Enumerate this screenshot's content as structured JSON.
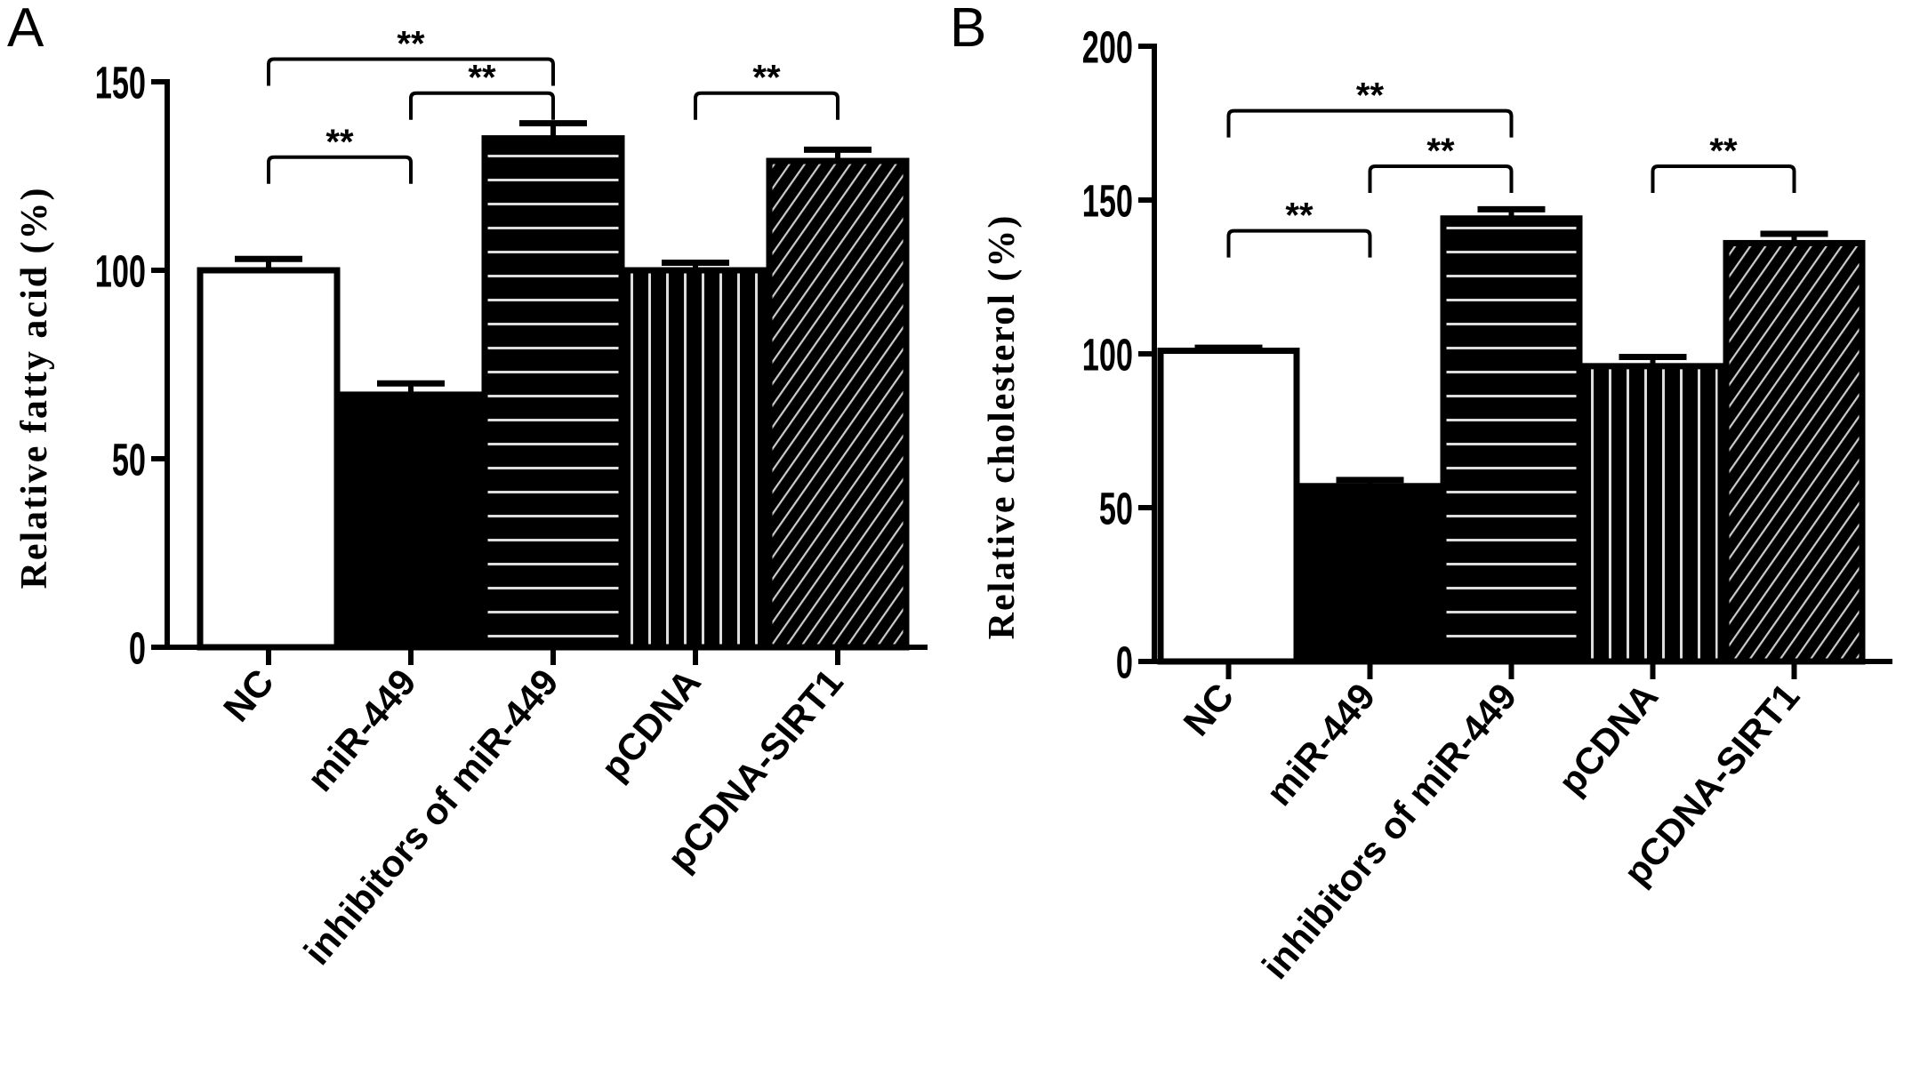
{
  "chart_data": [
    {
      "type": "bar",
      "panel_label": "A",
      "categories": [
        "NC",
        "miR-449",
        "inhibitors of miR-449",
        "pCDNA",
        "pCDNA-SIRT1"
      ],
      "values": [
        100,
        67,
        135,
        100,
        129
      ],
      "errors": [
        3,
        3,
        4,
        2,
        3
      ],
      "patterns": [
        "white",
        "solid-black",
        "horizontal-lines",
        "vertical-lines",
        "diagonal-lines"
      ],
      "ylabel": "Relative fatty acid (%)",
      "xlabel": "",
      "ylim": [
        0,
        150
      ],
      "yticks": [
        0,
        50,
        100,
        150
      ],
      "grid": false,
      "significance": [
        {
          "from": 0,
          "to": 1,
          "level": 130,
          "label": "**"
        },
        {
          "from": 0,
          "to": 2,
          "level": 156,
          "label": "**"
        },
        {
          "from": 1,
          "to": 2,
          "level": 147,
          "label": "**"
        },
        {
          "from": 3,
          "to": 4,
          "level": 147,
          "label": "**"
        }
      ]
    },
    {
      "type": "bar",
      "panel_label": "B",
      "categories": [
        "NC",
        "miR-449",
        "inhibitors of miR-449",
        "pCDNA",
        "pCDNA-SIRT1"
      ],
      "values": [
        101,
        57,
        144,
        96,
        136
      ],
      "errors": [
        1,
        2,
        3,
        3,
        3
      ],
      "patterns": [
        "white",
        "solid-black",
        "horizontal-lines",
        "vertical-lines",
        "diagonal-lines"
      ],
      "ylabel": "Relative cholesterol (%)",
      "xlabel": "",
      "ylim": [
        0,
        200
      ],
      "yticks": [
        0,
        50,
        100,
        150,
        200
      ],
      "grid": false,
      "significance": [
        {
          "from": 0,
          "to": 1,
          "level": 140,
          "label": "**"
        },
        {
          "from": 0,
          "to": 2,
          "level": 179,
          "label": "**"
        },
        {
          "from": 1,
          "to": 2,
          "level": 161,
          "label": "**"
        },
        {
          "from": 3,
          "to": 4,
          "level": 161,
          "label": "**"
        }
      ]
    }
  ],
  "colors": {
    "ink": "#000000",
    "background": "#ffffff",
    "pattern_line": "#dddddd"
  }
}
